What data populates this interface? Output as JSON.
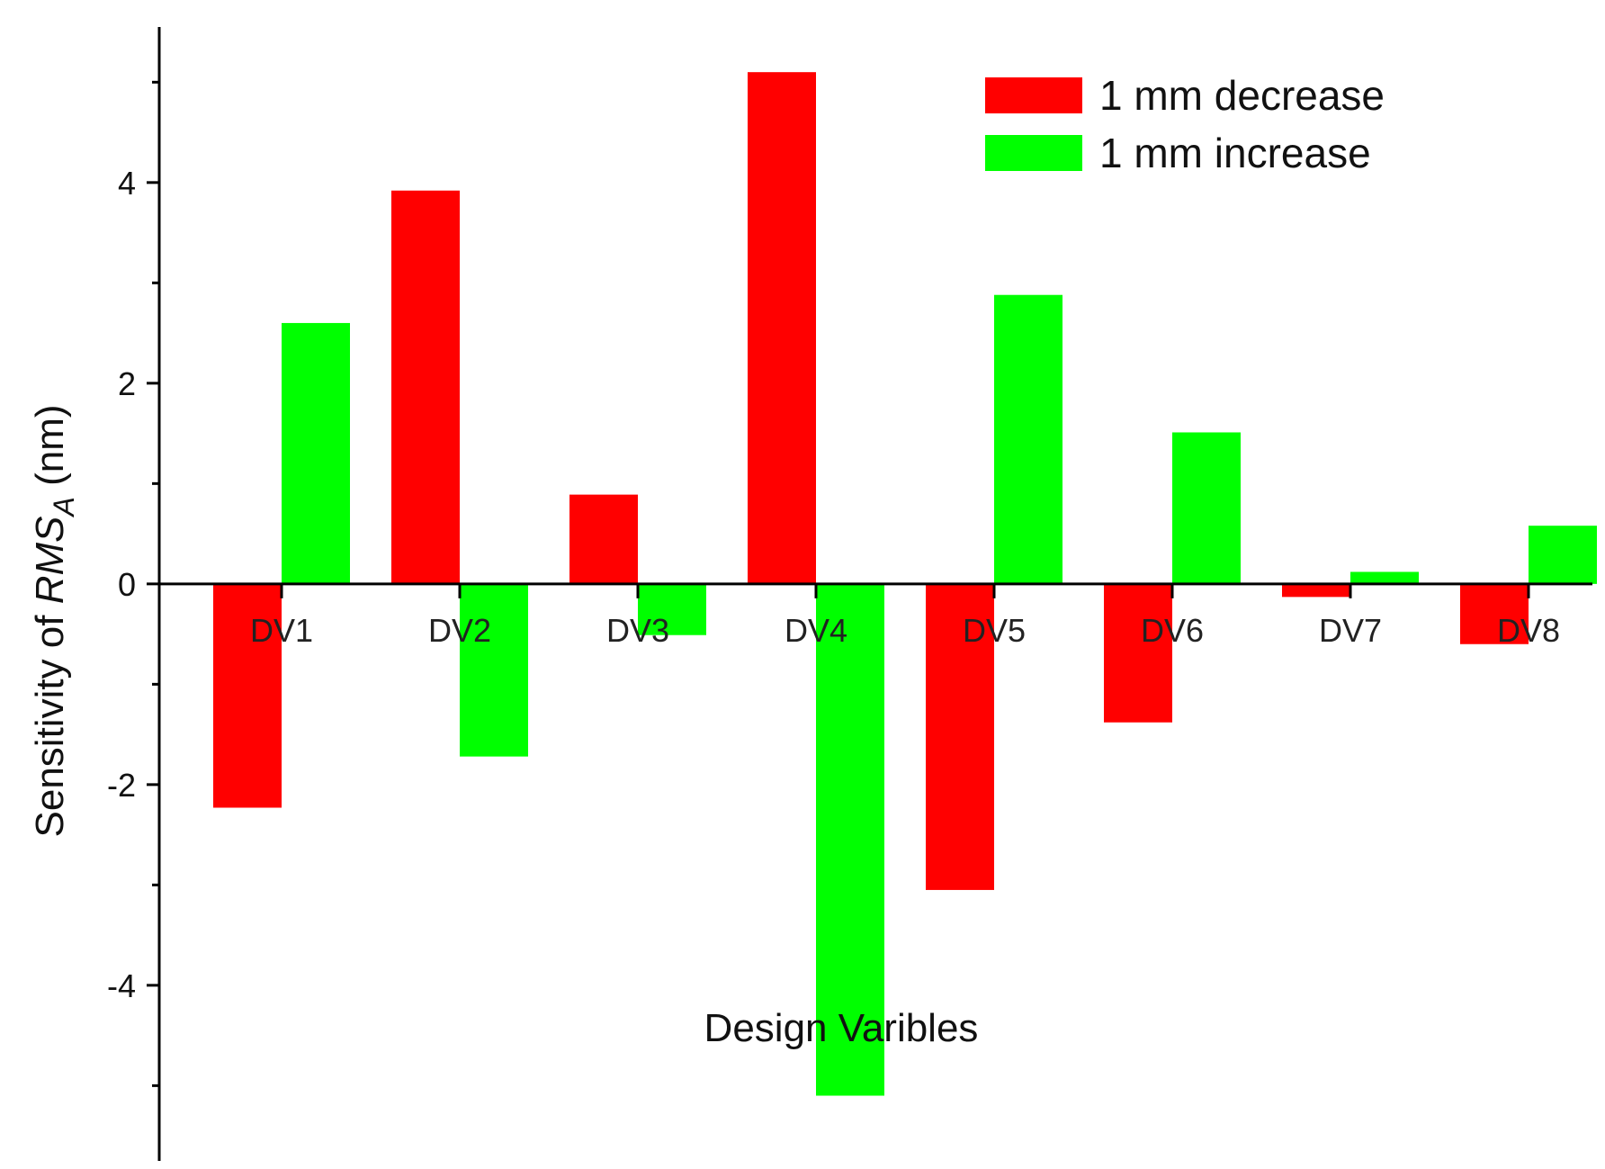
{
  "chart_data": {
    "type": "bar",
    "categories": [
      "DV1",
      "DV2",
      "DV3",
      "DV4",
      "DV5",
      "DV6",
      "DV7",
      "DV8"
    ],
    "series": [
      {
        "name": "1 mm decrease",
        "color": "#ff0000",
        "values": [
          -2.23,
          3.92,
          0.89,
          5.1,
          -3.05,
          -1.38,
          -0.13,
          -0.6
        ]
      },
      {
        "name": "1 mm increase",
        "color": "#00ff00",
        "values": [
          2.6,
          -1.72,
          -0.51,
          -5.1,
          2.88,
          1.51,
          0.12,
          0.58
        ]
      }
    ],
    "xlabel": "Design Varibles",
    "ylabel_prefix": "Sensitivity of ",
    "ylabel_italic": "RMS",
    "ylabel_subscript": "A",
    "ylabel_suffix": " (nm)",
    "ylim": [
      -5.75,
      5.55
    ],
    "yticks_labeled": [
      -4,
      -2,
      0,
      2,
      4
    ],
    "ytick_labels": [
      "-4",
      "-2",
      "0",
      "2",
      "4"
    ],
    "yticks_minor": [
      -5,
      -3,
      -1,
      1,
      3,
      5
    ],
    "grid": false,
    "legend_position": "top-right"
  }
}
